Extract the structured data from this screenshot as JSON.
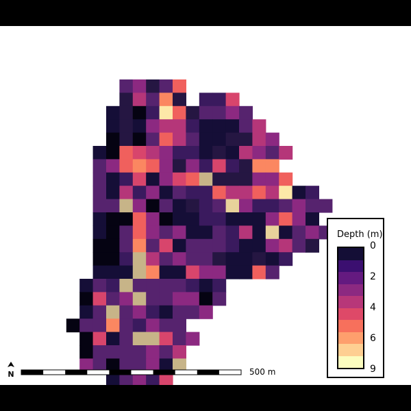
{
  "map": {
    "grid": {
      "rows": [
        "......EFCEI..........",
        "......CGEJC.DDH......",
        ".....BCADLICEEFE.....",
        ".....BCBFGGDBBBEG....",
        ".....ACAEIGEBBCCGF...",
        "....BAIHGFDDBCBGFEG..",
        "....EFIJIFCFDHDCJJ...",
        "....EBDHBFHIKCCCFFI..",
        "....EBGDFBEDDIGGIGLBD",
        "....EEKFAEBCDEMFDDEFEE",
        "....BAAIFABBDDBBBFIFB..",
        "....BAEIFEFBBEDGBMBEFE",
        "....AAEJEHBEEEDBBFGEC",
        "....AADKGEFEECBBCBD..",
        "....BBBKJBBHFFBBIE...",
        "...BEDKEEEEDBD.......",
        "...AHEFKEEFFAE.......",
        "...BEKEFDBEEF........",
        "..AEEJEDFEE..........",
        "...AHBEKKHEF.........",
        "...AEEEEFEG..........",
        "...FEAEEFBK..........",
        ".....BEFDH...........",
        ".....AAEIG..........."
      ],
      "palette": {
        "A": "#050312",
        "B": "#150e37",
        "C": "#251642",
        "D": "#3a1a5e",
        "E": "#56236e",
        "F": "#8c2981",
        "G": "#b53679",
        "H": "#d8456c",
        "I": "#f0605d",
        "J": "#fb8761",
        "K": "#c7b488",
        "L": "#fde8a8",
        "M": "#e8d29b"
      }
    }
  },
  "legend": {
    "title": "Depth (m)",
    "tick_labels": [
      "0",
      "2",
      "4",
      "6",
      "9"
    ],
    "colors": [
      "#140e36",
      "#3b0f70",
      "#641a80",
      "#8c2981",
      "#b73779",
      "#de4968",
      "#f7705c",
      "#fe9f6d",
      "#fecf92",
      "#fcfdbf"
    ]
  },
  "scale_bar": {
    "label": "500 m",
    "segments": 10
  },
  "north_arrow": {
    "label": "N",
    "icon": "north-arrow-icon"
  }
}
